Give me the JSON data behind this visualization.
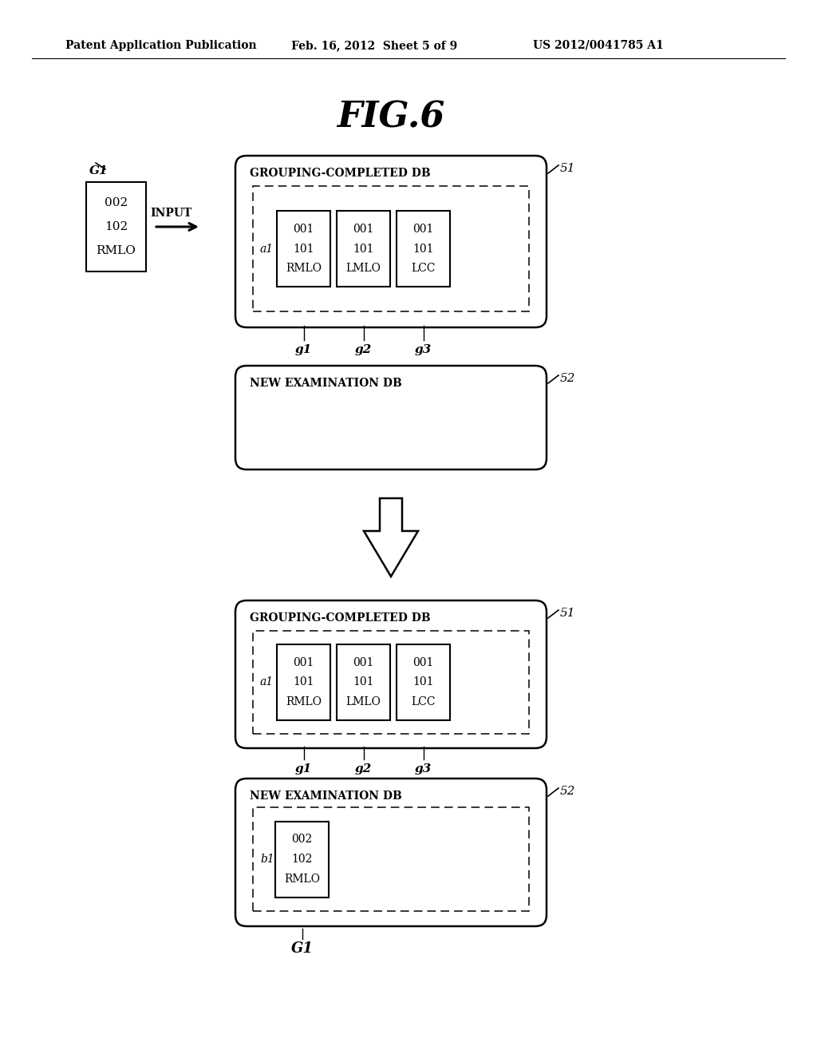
{
  "header_left": "Patent Application Publication",
  "header_mid": "Feb. 16, 2012  Sheet 5 of 9",
  "header_right": "US 2012/0041785 A1",
  "fig_title": "FIG.6",
  "group_labels": [
    "GROUPING-COMPLETED DB",
    "GROUPING-COMPLETED DB"
  ],
  "new_exam_labels": [
    "NEW EXAMINATION DB",
    "NEW EXAMINATION DB"
  ],
  "ref_51": "51",
  "ref_52": "52",
  "a1_label": "a1",
  "b1_label": "b1",
  "G1_label": "G1",
  "g_labels": [
    "g1",
    "g2",
    "g3"
  ],
  "input_label": "INPUT",
  "box_a_lines": [
    [
      "001",
      "101",
      "RMLO"
    ],
    [
      "001",
      "101",
      "LMLO"
    ],
    [
      "001",
      "101",
      "LCC"
    ]
  ],
  "box_b_lines": [
    "002",
    "102",
    "RMLO"
  ],
  "input_box_lines": [
    "002",
    "102",
    "RMLO"
  ]
}
